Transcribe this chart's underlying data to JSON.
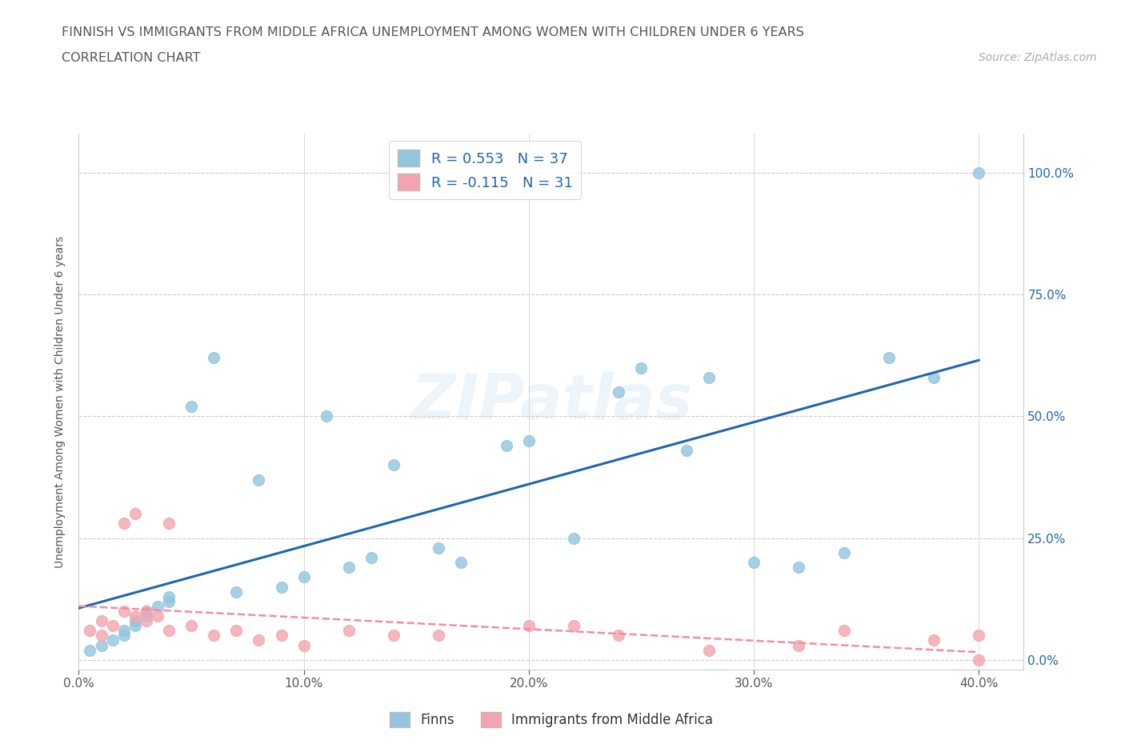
{
  "title_line1": "FINNISH VS IMMIGRANTS FROM MIDDLE AFRICA UNEMPLOYMENT AMONG WOMEN WITH CHILDREN UNDER 6 YEARS",
  "title_line2": "CORRELATION CHART",
  "source": "Source: ZipAtlas.com",
  "xlabel_ticks": [
    "0.0%",
    "10.0%",
    "20.0%",
    "30.0%",
    "40.0%"
  ],
  "ylabel_ticks": [
    "0.0%",
    "25.0%",
    "50.0%",
    "75.0%",
    "100.0%"
  ],
  "xlim": [
    0.0,
    0.42
  ],
  "ylim": [
    -0.02,
    1.08
  ],
  "ylabel": "Unemployment Among Women with Children Under 6 years",
  "legend_finns_label": "Finns",
  "legend_immigrants_label": "Immigrants from Middle Africa",
  "R_finns": 0.553,
  "N_finns": 37,
  "R_immigrants": -0.115,
  "N_immigrants": 31,
  "finns_color": "#92c5de",
  "immigrants_color": "#f4a4b0",
  "trend_finns_color": "#2166ac",
  "trend_immigrants_color": "#f48ca0",
  "watermark_text": "ZIPatlas",
  "finns_x": [
    0.005,
    0.01,
    0.015,
    0.02,
    0.02,
    0.025,
    0.025,
    0.03,
    0.03,
    0.035,
    0.04,
    0.04,
    0.05,
    0.06,
    0.07,
    0.08,
    0.09,
    0.1,
    0.11,
    0.12,
    0.13,
    0.14,
    0.16,
    0.17,
    0.19,
    0.2,
    0.22,
    0.24,
    0.25,
    0.27,
    0.28,
    0.3,
    0.32,
    0.34,
    0.36,
    0.38,
    0.4
  ],
  "finns_y": [
    0.02,
    0.03,
    0.04,
    0.05,
    0.06,
    0.07,
    0.08,
    0.09,
    0.1,
    0.11,
    0.12,
    0.13,
    0.52,
    0.62,
    0.14,
    0.37,
    0.15,
    0.17,
    0.5,
    0.19,
    0.21,
    0.4,
    0.23,
    0.2,
    0.44,
    0.45,
    0.25,
    0.55,
    0.6,
    0.43,
    0.58,
    0.2,
    0.19,
    0.22,
    0.62,
    0.58,
    1.0
  ],
  "immigrants_x": [
    0.005,
    0.01,
    0.01,
    0.015,
    0.02,
    0.02,
    0.025,
    0.025,
    0.03,
    0.03,
    0.035,
    0.04,
    0.04,
    0.05,
    0.06,
    0.07,
    0.08,
    0.09,
    0.1,
    0.12,
    0.14,
    0.16,
    0.2,
    0.22,
    0.24,
    0.28,
    0.32,
    0.34,
    0.38,
    0.4,
    0.4
  ],
  "immigrants_y": [
    0.06,
    0.05,
    0.08,
    0.07,
    0.1,
    0.28,
    0.09,
    0.3,
    0.08,
    0.1,
    0.09,
    0.06,
    0.28,
    0.07,
    0.05,
    0.06,
    0.04,
    0.05,
    0.03,
    0.06,
    0.05,
    0.05,
    0.07,
    0.07,
    0.05,
    0.02,
    0.03,
    0.06,
    0.04,
    0.0,
    0.05
  ]
}
